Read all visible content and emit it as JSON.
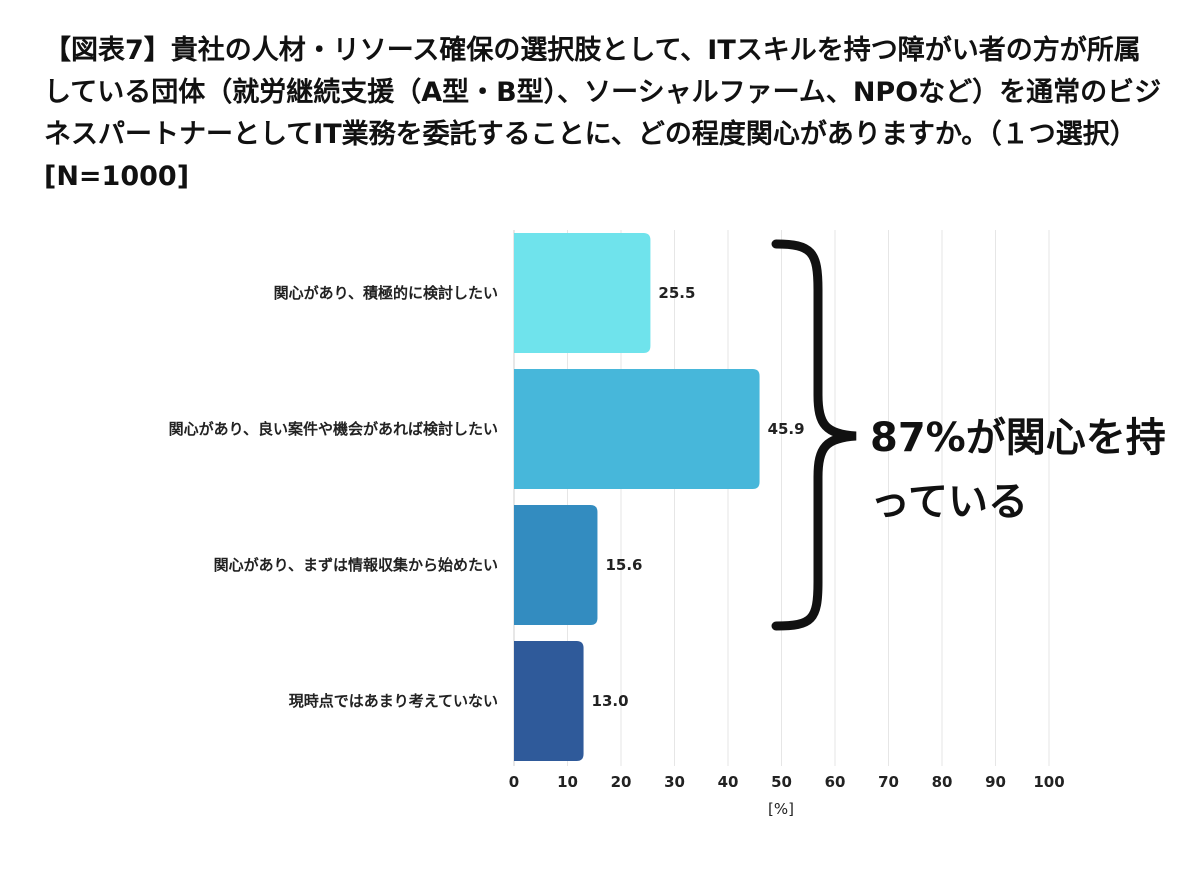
{
  "title": "【図表7】貴社の人材・リソース確保の選択肢として、ITスキルを持つ障がい者の方が所属している団体（就労継続支援（A型・B型）、ソーシャルファーム、NPOなど）を通常のビジネスパートナーとしてIT業務を委託することに、どの程度関心がありますか。（１つ選択）[N=1000]",
  "annotation": "87%が関心を持っている",
  "chart_data": {
    "type": "bar",
    "orientation": "horizontal",
    "categories": [
      "関心があり、積極的に検討したい",
      "関心があり、良い案件や機会があれば検討したい",
      "関心があり、まずは情報収集から始めたい",
      "現時点ではあまり考えていない"
    ],
    "values": [
      25.5,
      45.9,
      15.6,
      13.0
    ],
    "value_labels": [
      "25.5",
      "45.9",
      "15.6",
      "13.0"
    ],
    "colors": [
      "#6fe3ec",
      "#47b7da",
      "#338cc0",
      "#2f5a9a"
    ],
    "xlim": [
      0,
      100
    ],
    "xticks": [
      "0",
      "10",
      "20",
      "30",
      "40",
      "50",
      "60",
      "70",
      "80",
      "90",
      "100"
    ],
    "xlabel": "[%]",
    "grid": true
  }
}
